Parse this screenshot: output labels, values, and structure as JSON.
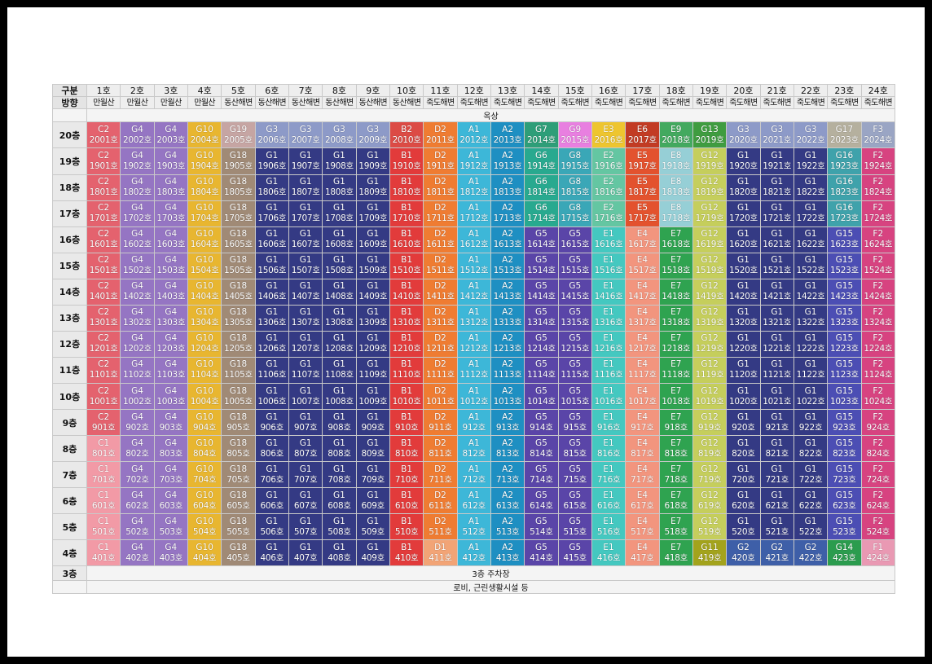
{
  "header": {
    "category_label": "구분",
    "direction_label": "방향",
    "lines": [
      "1호",
      "2호",
      "3호",
      "4호",
      "5호",
      "6호",
      "7호",
      "8호",
      "9호",
      "10호",
      "11호",
      "12호",
      "13호",
      "14호",
      "15호",
      "16호",
      "17호",
      "18호",
      "19호",
      "20호",
      "21호",
      "22호",
      "23호",
      "24호"
    ],
    "directions": [
      "만월산",
      "만월산",
      "만월산",
      "만월산",
      "동산해변",
      "동산해변",
      "동산해변",
      "동산해변",
      "동산해변",
      "동산해변",
      "죽도해변",
      "죽도해변",
      "죽도해변",
      "죽도해변",
      "죽도해변",
      "죽도해변",
      "죽도해변",
      "죽도해변",
      "죽도해변",
      "죽도해변",
      "죽도해변",
      "죽도해변",
      "죽도해변",
      "죽도해변"
    ]
  },
  "rooftop_label": "옥상",
  "floors": [
    {
      "label": "20층",
      "prefix": "20",
      "types": [
        "C2",
        "G4",
        "G4",
        "G10",
        "G19",
        "G3",
        "G3",
        "G3",
        "G3",
        "B2",
        "D2",
        "A1",
        "A2",
        "G7",
        "G9",
        "E3",
        "E6",
        "E9",
        "G13",
        "G3",
        "G3",
        "G3",
        "G17",
        "F3"
      ]
    },
    {
      "label": "19층",
      "prefix": "19",
      "types": [
        "C2",
        "G4",
        "G4",
        "G10",
        "G18",
        "G1",
        "G1",
        "G1",
        "G1",
        "B1",
        "D2",
        "A1",
        "A2",
        "G6",
        "G8",
        "E2",
        "E5",
        "E8",
        "G12",
        "G1",
        "G1",
        "G1",
        "G16",
        "F2"
      ]
    },
    {
      "label": "18층",
      "prefix": "18",
      "types": [
        "C2",
        "G4",
        "G4",
        "G10",
        "G18",
        "G1",
        "G1",
        "G1",
        "G1",
        "B1",
        "D2",
        "A1",
        "A2",
        "G6",
        "G8",
        "E2",
        "E5",
        "E8",
        "G12",
        "G1",
        "G1",
        "G1",
        "G16",
        "F2"
      ]
    },
    {
      "label": "17층",
      "prefix": "17",
      "types": [
        "C2",
        "G4",
        "G4",
        "G10",
        "G18",
        "G1",
        "G1",
        "G1",
        "G1",
        "B1",
        "D2",
        "A1",
        "A2",
        "G6",
        "G8",
        "E2",
        "E5",
        "E8",
        "G12",
        "G1",
        "G1",
        "G1",
        "G16",
        "F2"
      ]
    },
    {
      "label": "16층",
      "prefix": "16",
      "types": [
        "C2",
        "G4",
        "G4",
        "G10",
        "G18",
        "G1",
        "G1",
        "G1",
        "G1",
        "B1",
        "D2",
        "A1",
        "A2",
        "G5",
        "G5",
        "E1",
        "E4",
        "E7",
        "G12",
        "G1",
        "G1",
        "G1",
        "G15",
        "F2"
      ]
    },
    {
      "label": "15층",
      "prefix": "15",
      "types": [
        "C2",
        "G4",
        "G4",
        "G10",
        "G18",
        "G1",
        "G1",
        "G1",
        "G1",
        "B1",
        "D2",
        "A1",
        "A2",
        "G5",
        "G5",
        "E1",
        "E4",
        "E7",
        "G12",
        "G1",
        "G1",
        "G1",
        "G15",
        "F2"
      ]
    },
    {
      "label": "14층",
      "prefix": "14",
      "types": [
        "C2",
        "G4",
        "G4",
        "G10",
        "G18",
        "G1",
        "G1",
        "G1",
        "G1",
        "B1",
        "D2",
        "A1",
        "A2",
        "G5",
        "G5",
        "E1",
        "E4",
        "E7",
        "G12",
        "G1",
        "G1",
        "G1",
        "G15",
        "F2"
      ]
    },
    {
      "label": "13층",
      "prefix": "13",
      "types": [
        "C2",
        "G4",
        "G4",
        "G10",
        "G18",
        "G1",
        "G1",
        "G1",
        "G1",
        "B1",
        "D2",
        "A1",
        "A2",
        "G5",
        "G5",
        "E1",
        "E4",
        "E7",
        "G12",
        "G1",
        "G1",
        "G1",
        "G15",
        "F2"
      ]
    },
    {
      "label": "12층",
      "prefix": "12",
      "types": [
        "C2",
        "G4",
        "G4",
        "G10",
        "G18",
        "G1",
        "G1",
        "G1",
        "G1",
        "B1",
        "D2",
        "A1",
        "A2",
        "G5",
        "G5",
        "E1",
        "E4",
        "E7",
        "G12",
        "G1",
        "G1",
        "G1",
        "G15",
        "F2"
      ]
    },
    {
      "label": "11층",
      "prefix": "11",
      "types": [
        "C2",
        "G4",
        "G4",
        "G10",
        "G18",
        "G1",
        "G1",
        "G1",
        "G1",
        "B1",
        "D2",
        "A1",
        "A2",
        "G5",
        "G5",
        "E1",
        "E4",
        "E7",
        "G12",
        "G1",
        "G1",
        "G1",
        "G15",
        "F2"
      ]
    },
    {
      "label": "10층",
      "prefix": "10",
      "types": [
        "C2",
        "G4",
        "G4",
        "G10",
        "G18",
        "G1",
        "G1",
        "G1",
        "G1",
        "B1",
        "D2",
        "A1",
        "A2",
        "G5",
        "G5",
        "E1",
        "E4",
        "E7",
        "G12",
        "G1",
        "G1",
        "G1",
        "G15",
        "F2"
      ]
    },
    {
      "label": "9층",
      "prefix": "9",
      "types": [
        "C2",
        "G4",
        "G4",
        "G10",
        "G18",
        "G1",
        "G1",
        "G1",
        "G1",
        "B1",
        "D2",
        "A1",
        "A2",
        "G5",
        "G5",
        "E1",
        "E4",
        "E7",
        "G12",
        "G1",
        "G1",
        "G1",
        "G15",
        "F2"
      ]
    },
    {
      "label": "8층",
      "prefix": "8",
      "types": [
        "C1",
        "G4",
        "G4",
        "G10",
        "G18",
        "G1",
        "G1",
        "G1",
        "G1",
        "B1",
        "D2",
        "A1",
        "A2",
        "G5",
        "G5",
        "E1",
        "E4",
        "E7",
        "G12",
        "G1",
        "G1",
        "G1",
        "G15",
        "F2"
      ]
    },
    {
      "label": "7층",
      "prefix": "7",
      "types": [
        "C1",
        "G4",
        "G4",
        "G10",
        "G18",
        "G1",
        "G1",
        "G1",
        "G1",
        "B1",
        "D2",
        "A1",
        "A2",
        "G5",
        "G5",
        "E1",
        "E4",
        "E7",
        "G12",
        "G1",
        "G1",
        "G1",
        "G15",
        "F2"
      ]
    },
    {
      "label": "6층",
      "prefix": "6",
      "types": [
        "C1",
        "G4",
        "G4",
        "G10",
        "G18",
        "G1",
        "G1",
        "G1",
        "G1",
        "B1",
        "D2",
        "A1",
        "A2",
        "G5",
        "G5",
        "E1",
        "E4",
        "E7",
        "G12",
        "G1",
        "G1",
        "G1",
        "G15",
        "F2"
      ]
    },
    {
      "label": "5층",
      "prefix": "5",
      "types": [
        "C1",
        "G4",
        "G4",
        "G10",
        "G18",
        "G1",
        "G1",
        "G1",
        "G1",
        "B1",
        "D2",
        "A1",
        "A2",
        "G5",
        "G5",
        "E1",
        "E4",
        "E7",
        "G12",
        "G1",
        "G1",
        "G1",
        "G15",
        "F2"
      ]
    },
    {
      "label": "4층",
      "prefix": "4",
      "types": [
        "C1",
        "G4",
        "G4",
        "G10",
        "G18",
        "G1",
        "G1",
        "G1",
        "G1",
        "B1",
        "D1",
        "A1",
        "A2",
        "G5",
        "G5",
        "E1",
        "E4",
        "E7",
        "G11",
        "G2",
        "G2",
        "G2",
        "G14",
        "F1"
      ]
    }
  ],
  "floor3": {
    "label": "3층",
    "text": "3층 주차장"
  },
  "lobby_text": "로비, 근린생활시설 등",
  "unit_suffix": "호",
  "type_colors": {
    "C1": "#f29aa6",
    "C2": "#e4626e",
    "G4": "#9575c3",
    "G10": "#e8b630",
    "G18": "#a08a76",
    "G19": "#c6a5a3",
    "G3": "#8d9ac8",
    "G1": "#343a84",
    "B1": "#e23b3b",
    "B2": "#dc4b45",
    "D1": "#f2a476",
    "D2": "#ef7c32",
    "A1": "#3db7d8",
    "A2": "#1e8fc2",
    "G5": "#5a45a8",
    "G6": "#28a98f",
    "G7": "#2e9e78",
    "G8": "#3aa7b7",
    "G9": "#e87fe0",
    "E1": "#44c8c0",
    "E2": "#64c6a2",
    "E3": "#eec52f",
    "E4": "#f2957e",
    "E5": "#e3522e",
    "E6": "#c23b24",
    "E7": "#2fa350",
    "E8": "#96cfd6",
    "E9": "#43a95f",
    "G11": "#a3a31c",
    "G12": "#c5ce5c",
    "G13": "#3f9c40",
    "G2": "#3e5fa8",
    "G14": "#2b9c4e",
    "G15": "#4c4eb4",
    "G16": "#3fa2ab",
    "G17": "#b5b09e",
    "F1": "#e999b3",
    "F2": "#d74380",
    "F3": "#9aa5c4"
  }
}
